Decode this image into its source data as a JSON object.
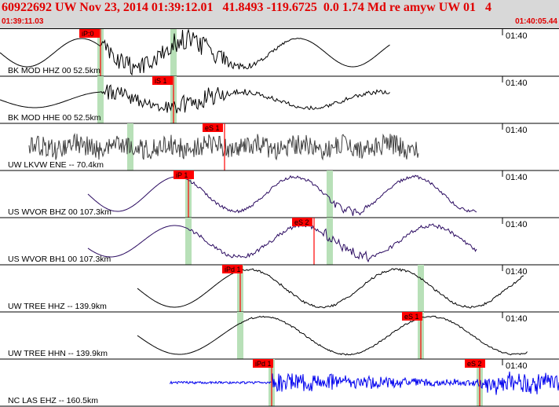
{
  "header": {
    "title": "60922692 UW Nov 23, 2014 01:39:12.01   41.8493 -119.6725  0.0 1.74 Md re amyw UW 01   4",
    "time_start": "01:39:11.03",
    "time_end": "01:40:05.44"
  },
  "colors": {
    "header_bg": "#d8d8d8",
    "header_text": "#e00000",
    "pick": "#ff0000",
    "window": "#b8e0b8",
    "trace_black": "#000000",
    "trace_gray": "#404040",
    "trace_purple": "#2a0a60",
    "trace_blue": "#0000ee"
  },
  "traces": [
    {
      "label": "BK MOD HHZ 00 52.5km",
      "time_tick": "01:40",
      "pick": "iP:0",
      "color": "trace_black"
    },
    {
      "label": "BK MOD HHE 00 52.5km",
      "time_tick": "01:40",
      "pick": "iS 1",
      "color": "trace_black"
    },
    {
      "label": "UW LKVW ENE -- 70.4km",
      "time_tick": "01:40",
      "pick": "eS 1",
      "color": "trace_gray"
    },
    {
      "label": "US WVOR BHZ 00 107.3km",
      "time_tick": "01:40",
      "pick": "iP 1",
      "color": "trace_purple"
    },
    {
      "label": "US WVOR BH1 00 107.3km",
      "time_tick": "01:40",
      "pick": "eS 2",
      "color": "trace_purple"
    },
    {
      "label": "UW TREE HHZ -- 139.9km",
      "time_tick": "01:40",
      "pick": "iPd 1",
      "color": "trace_black"
    },
    {
      "label": "UW TREE HHN -- 139.9km",
      "time_tick": "01:40",
      "pick": "eS 1",
      "color": "trace_black"
    },
    {
      "label": "NC LAS EHZ -- 160.5km",
      "time_tick": "01:40",
      "pick": "iPd 1",
      "pick2": "eS 2",
      "color": "trace_blue"
    }
  ]
}
